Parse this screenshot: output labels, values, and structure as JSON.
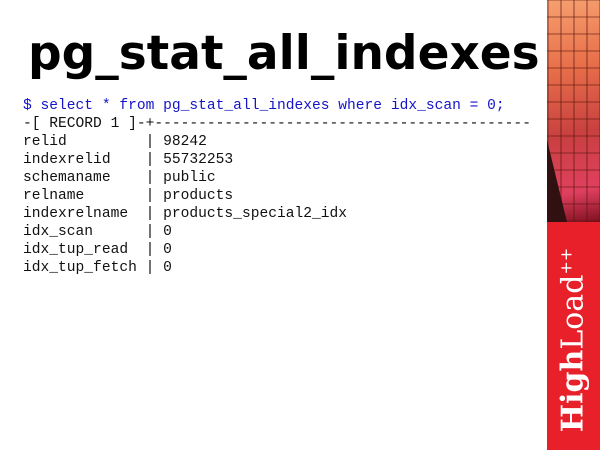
{
  "slide": {
    "title": "pg_stat_all_indexes",
    "command": "$ select * from pg_stat_all_indexes where idx_scan = 0;",
    "record_header": "-[ RECORD 1 ]-+-------------------------------------------",
    "rows": [
      {
        "field": "relid",
        "value": "98242"
      },
      {
        "field": "indexrelid",
        "value": "55732253"
      },
      {
        "field": "schemaname",
        "value": "public"
      },
      {
        "field": "relname",
        "value": "products"
      },
      {
        "field": "indexrelname",
        "value": "products_special2_idx"
      },
      {
        "field": "idx_scan",
        "value": "0"
      },
      {
        "field": "idx_tup_read",
        "value": "0"
      },
      {
        "field": "idx_tup_fetch",
        "value": "0"
      }
    ]
  },
  "branding": {
    "logo_bold": "High",
    "logo_light": "Load",
    "logo_sup": "++",
    "accent": "#e8202a"
  }
}
